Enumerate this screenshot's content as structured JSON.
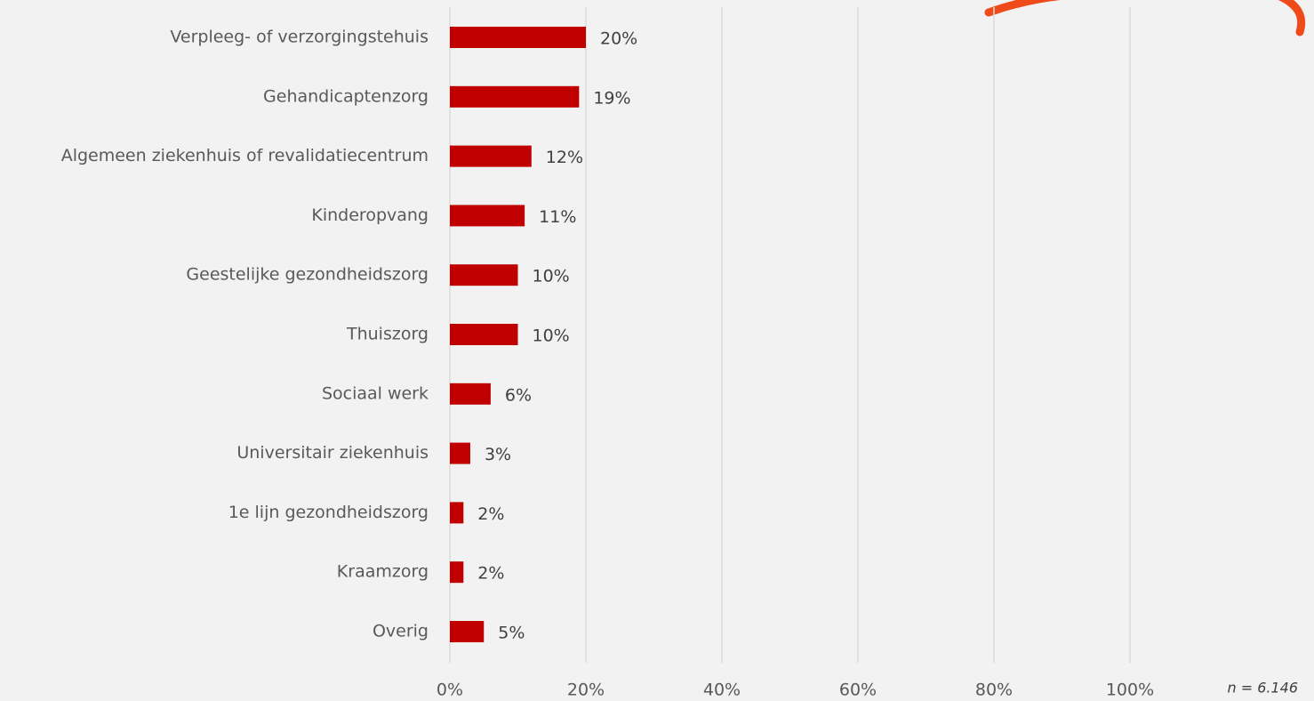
{
  "chart_data": {
    "type": "bar",
    "orientation": "horizontal",
    "categories": [
      "Verpleeg- of verzorgingstehuis",
      "Gehandicaptenzorg",
      "Algemeen ziekenhuis of revalidatiecentrum",
      "Kinderopvang",
      "Geestelijke gezondheidszorg",
      "Thuiszorg",
      "Sociaal werk",
      "Universitair ziekenhuis",
      "1e lijn gezondheidszorg",
      "Kraamzorg",
      "Overig"
    ],
    "values": [
      20,
      19,
      12,
      11,
      10,
      10,
      6,
      3,
      2,
      2,
      5
    ],
    "value_labels": [
      "20%",
      "19%",
      "12%",
      "11%",
      "10%",
      "10%",
      "6%",
      "3%",
      "2%",
      "2%",
      "5%"
    ],
    "color": "#c00000",
    "xlim": [
      0,
      100
    ],
    "xticks": [
      {
        "value": 0,
        "label": "0%"
      },
      {
        "value": 20,
        "label": "20%"
      },
      {
        "value": 40,
        "label": "40%"
      },
      {
        "value": 60,
        "label": "60%"
      },
      {
        "value": 80,
        "label": "80%"
      },
      {
        "value": 100,
        "label": "100%"
      }
    ],
    "grid": true,
    "annotation": "n = 6.146"
  }
}
